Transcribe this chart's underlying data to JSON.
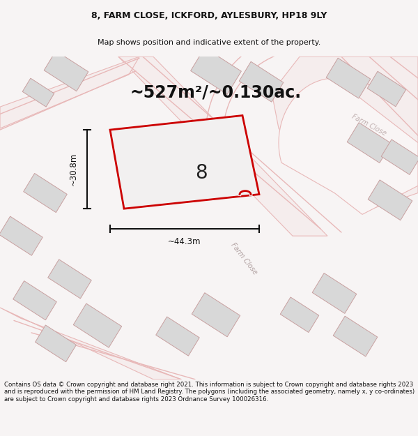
{
  "title_line1": "8, FARM CLOSE, ICKFORD, AYLESBURY, HP18 9LY",
  "title_line2": "Map shows position and indicative extent of the property.",
  "area_text": "~527m²/~0.130ac.",
  "width_label": "~44.3m",
  "height_label": "~30.8m",
  "plot_number": "8",
  "road_label": "Farm Close",
  "road_label2": "Farm Close",
  "footer_text": "Contains OS data © Crown copyright and database right 2021. This information is subject to Crown copyright and database rights 2023 and is reproduced with the permission of HM Land Registry. The polygons (including the associated geometry, namely x, y co-ordinates) are subject to Crown copyright and database rights 2023 Ordnance Survey 100026316.",
  "bg_color": "#f7f4f4",
  "map_bg_color": "#fafafa",
  "plot_fill": "#f0eeee",
  "plot_edge_color": "#cc0000",
  "building_fill": "#d8d8d8",
  "building_edge": "#c8a0a0",
  "road_line_color": "#e8b8b8",
  "road_fill": "#f5eded",
  "dimension_color": "#111111",
  "title_fontsize": 9.0,
  "subtitle_fontsize": 8.0,
  "area_fontsize": 17,
  "label_fontsize": 8.5,
  "footer_fontsize": 6.2
}
